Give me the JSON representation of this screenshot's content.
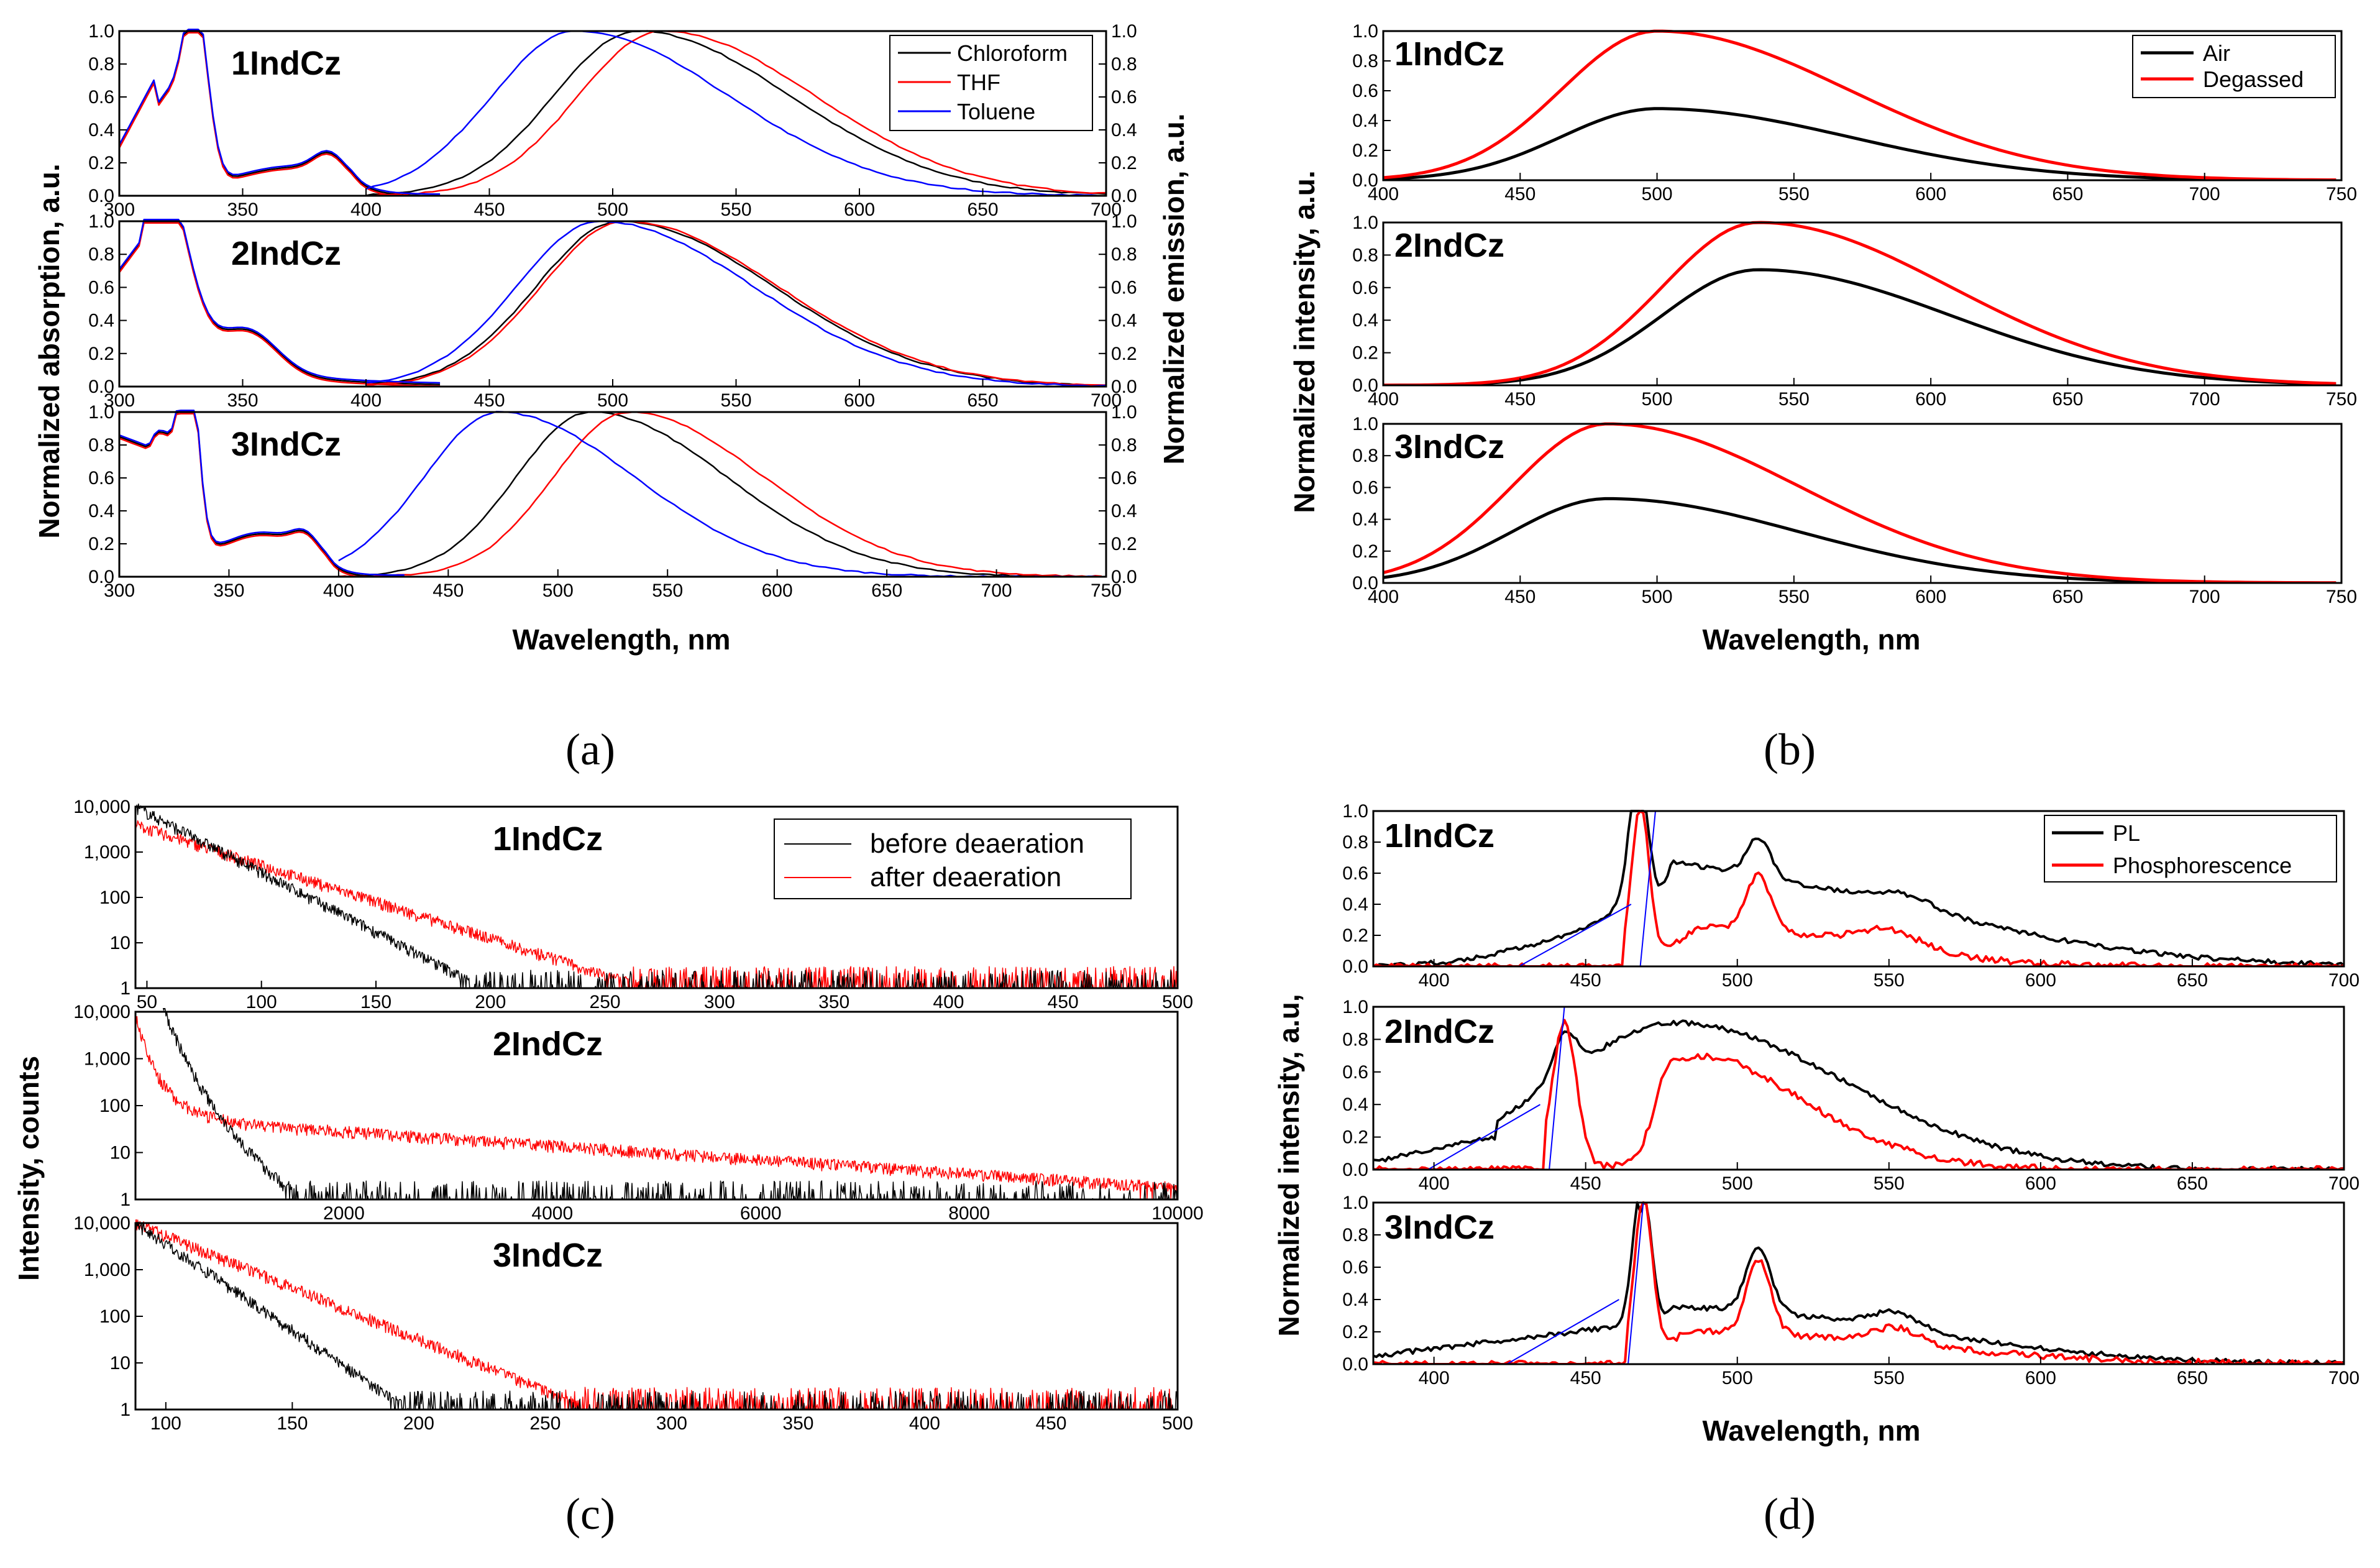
{
  "figure_labels": {
    "a": "(a)",
    "b": "(b)",
    "c": "(c)",
    "d": "(d)"
  },
  "chart_data": [
    {
      "id": "a",
      "type": "line",
      "xlabel": "Wavelength, nm",
      "ylabel_left": "Normalized absorption, a.u.",
      "ylabel_right": "Normalized emission, a.u.",
      "legend": [
        {
          "name": "Chloroform",
          "color": "#000000"
        },
        {
          "name": "THF",
          "color": "#ff0000"
        },
        {
          "name": "Toluene",
          "color": "#0000ff"
        }
      ],
      "panels": [
        {
          "name": "1IndCz",
          "xlim": [
            300,
            700
          ],
          "ylim": [
            0,
            1.0
          ],
          "xticks": [
            300,
            350,
            400,
            450,
            500,
            550,
            600,
            650,
            700
          ],
          "yticks": [
            "0.0",
            "0.2",
            "0.4",
            "0.6",
            "0.8",
            "1.0"
          ],
          "abs_peak": 331,
          "emission_peaks": {
            "Chloroform": 510,
            "THF": 520,
            "Toluene": 485
          }
        },
        {
          "name": "2IndCz",
          "xlim": [
            300,
            700
          ],
          "ylim": [
            0,
            1.0
          ],
          "xticks": [
            300,
            350,
            400,
            450,
            500,
            550,
            600,
            650,
            700
          ],
          "yticks": [
            "0.0",
            "0.2",
            "0.4",
            "0.6",
            "0.8",
            "1.0"
          ],
          "abs_peak": 320,
          "emission_peaks": {
            "Chloroform": 503,
            "THF": 505,
            "Toluene": 495
          }
        },
        {
          "name": "3IndCz",
          "xlim": [
            300,
            750
          ],
          "ylim": [
            0,
            1.0
          ],
          "xticks": [
            300,
            350,
            400,
            450,
            500,
            550,
            600,
            650,
            700,
            750
          ],
          "yticks": [
            "0.0",
            "0.2",
            "0.4",
            "0.6",
            "0.8",
            "1.0"
          ],
          "abs_peak": 332,
          "emission_peaks": {
            "Chloroform": 515,
            "THF": 532,
            "Toluene": 473
          }
        }
      ]
    },
    {
      "id": "b",
      "type": "line",
      "xlabel": "Wavelength, nm",
      "ylabel": "Normalized intensity, a.u.",
      "legend": [
        {
          "name": "Air",
          "color": "#000000"
        },
        {
          "name": "Degassed",
          "color": "#ff0000"
        }
      ],
      "panels": [
        {
          "name": "1IndCz",
          "xlim": [
            400,
            750
          ],
          "ylim": [
            0,
            1.0
          ],
          "xticks": [
            400,
            450,
            500,
            550,
            600,
            650,
            700,
            750
          ],
          "yticks": [
            "0.0",
            "0.2",
            "0.4",
            "0.6",
            "0.8",
            "1.0"
          ],
          "air": {
            "peak": 500,
            "max": 0.48
          },
          "degassed": {
            "peak": 500,
            "max": 1.0
          }
        },
        {
          "name": "2IndCz",
          "xlim": [
            400,
            750
          ],
          "ylim": [
            0,
            1.0
          ],
          "xticks": [
            400,
            450,
            500,
            550,
            600,
            650,
            700,
            750
          ],
          "yticks": [
            "0.0",
            "0.2",
            "0.4",
            "0.6",
            "0.8",
            "1.0"
          ],
          "air": {
            "peak": 537,
            "max": 0.71
          },
          "degassed": {
            "peak": 537,
            "max": 1.0
          }
        },
        {
          "name": "3IndCz",
          "xlim": [
            400,
            750
          ],
          "ylim": [
            0,
            1.0
          ],
          "xticks": [
            400,
            450,
            500,
            550,
            600,
            650,
            700,
            750
          ],
          "yticks": [
            "0.0",
            "0.2",
            "0.4",
            "0.6",
            "0.8",
            "1.0"
          ],
          "air": {
            "peak": 482,
            "max": 0.53
          },
          "degassed": {
            "peak": 482,
            "max": 1.0
          }
        }
      ]
    },
    {
      "id": "c",
      "type": "line",
      "yscale": "log",
      "ylabel": "Intensity, counts",
      "legend": [
        {
          "name": "before deaeration",
          "color": "#000000"
        },
        {
          "name": "after deaeration",
          "color": "#ff0000"
        }
      ],
      "panels": [
        {
          "name": "1IndCz",
          "xlim": [
            45,
            500
          ],
          "ylim": [
            1,
            10000
          ],
          "xticks": [
            50,
            100,
            150,
            200,
            250,
            300,
            350,
            400,
            450,
            500
          ],
          "yticks": [
            "1",
            "10",
            "100",
            "1,000",
            "10,000"
          ]
        },
        {
          "name": "2IndCz",
          "xlim": [
            0,
            10000
          ],
          "ylim": [
            1,
            10000
          ],
          "xticks": [
            2000,
            4000,
            6000,
            8000,
            10000
          ],
          "yticks": [
            "1",
            "10",
            "100",
            "1,000",
            "10,000"
          ]
        },
        {
          "name": "3IndCz",
          "xlim": [
            88,
            500
          ],
          "ylim": [
            1,
            10000
          ],
          "xticks": [
            100,
            150,
            200,
            250,
            300,
            350,
            400,
            450,
            500
          ],
          "yticks": [
            "1",
            "10",
            "100",
            "1,000",
            "10,000"
          ]
        }
      ]
    },
    {
      "id": "d",
      "type": "line",
      "xlabel": "Wavelength, nm",
      "ylabel": "Normalized intensity, a.u,",
      "legend": [
        {
          "name": "PL",
          "color": "#000000"
        },
        {
          "name": "Phosphorescence",
          "color": "#ff0000"
        }
      ],
      "panels": [
        {
          "name": "1IndCz",
          "xlim": [
            380,
            700
          ],
          "ylim": [
            0,
            1.0
          ],
          "xticks": [
            400,
            450,
            500,
            550,
            600,
            650,
            700
          ],
          "yticks": [
            "0.0",
            "0.2",
            "0.4",
            "0.6",
            "0.8",
            "1.0"
          ],
          "onset_nm": 468,
          "main_peak": 468
        },
        {
          "name": "2IndCz",
          "xlim": [
            380,
            700
          ],
          "ylim": [
            0,
            1.0
          ],
          "xticks": [
            400,
            450,
            500,
            550,
            600,
            650,
            700
          ],
          "yticks": [
            "0.0",
            "0.2",
            "0.4",
            "0.6",
            "0.8",
            "1.0"
          ],
          "onset_nm": 438,
          "main_peak": 443
        },
        {
          "name": "3IndCz",
          "xlim": [
            380,
            700
          ],
          "ylim": [
            0,
            1.0
          ],
          "xticks": [
            400,
            450,
            500,
            550,
            600,
            650,
            700
          ],
          "yticks": [
            "0.0",
            "0.2",
            "0.4",
            "0.6",
            "0.8",
            "1.0"
          ],
          "onset_nm": 464,
          "main_peak": 469
        }
      ]
    }
  ]
}
